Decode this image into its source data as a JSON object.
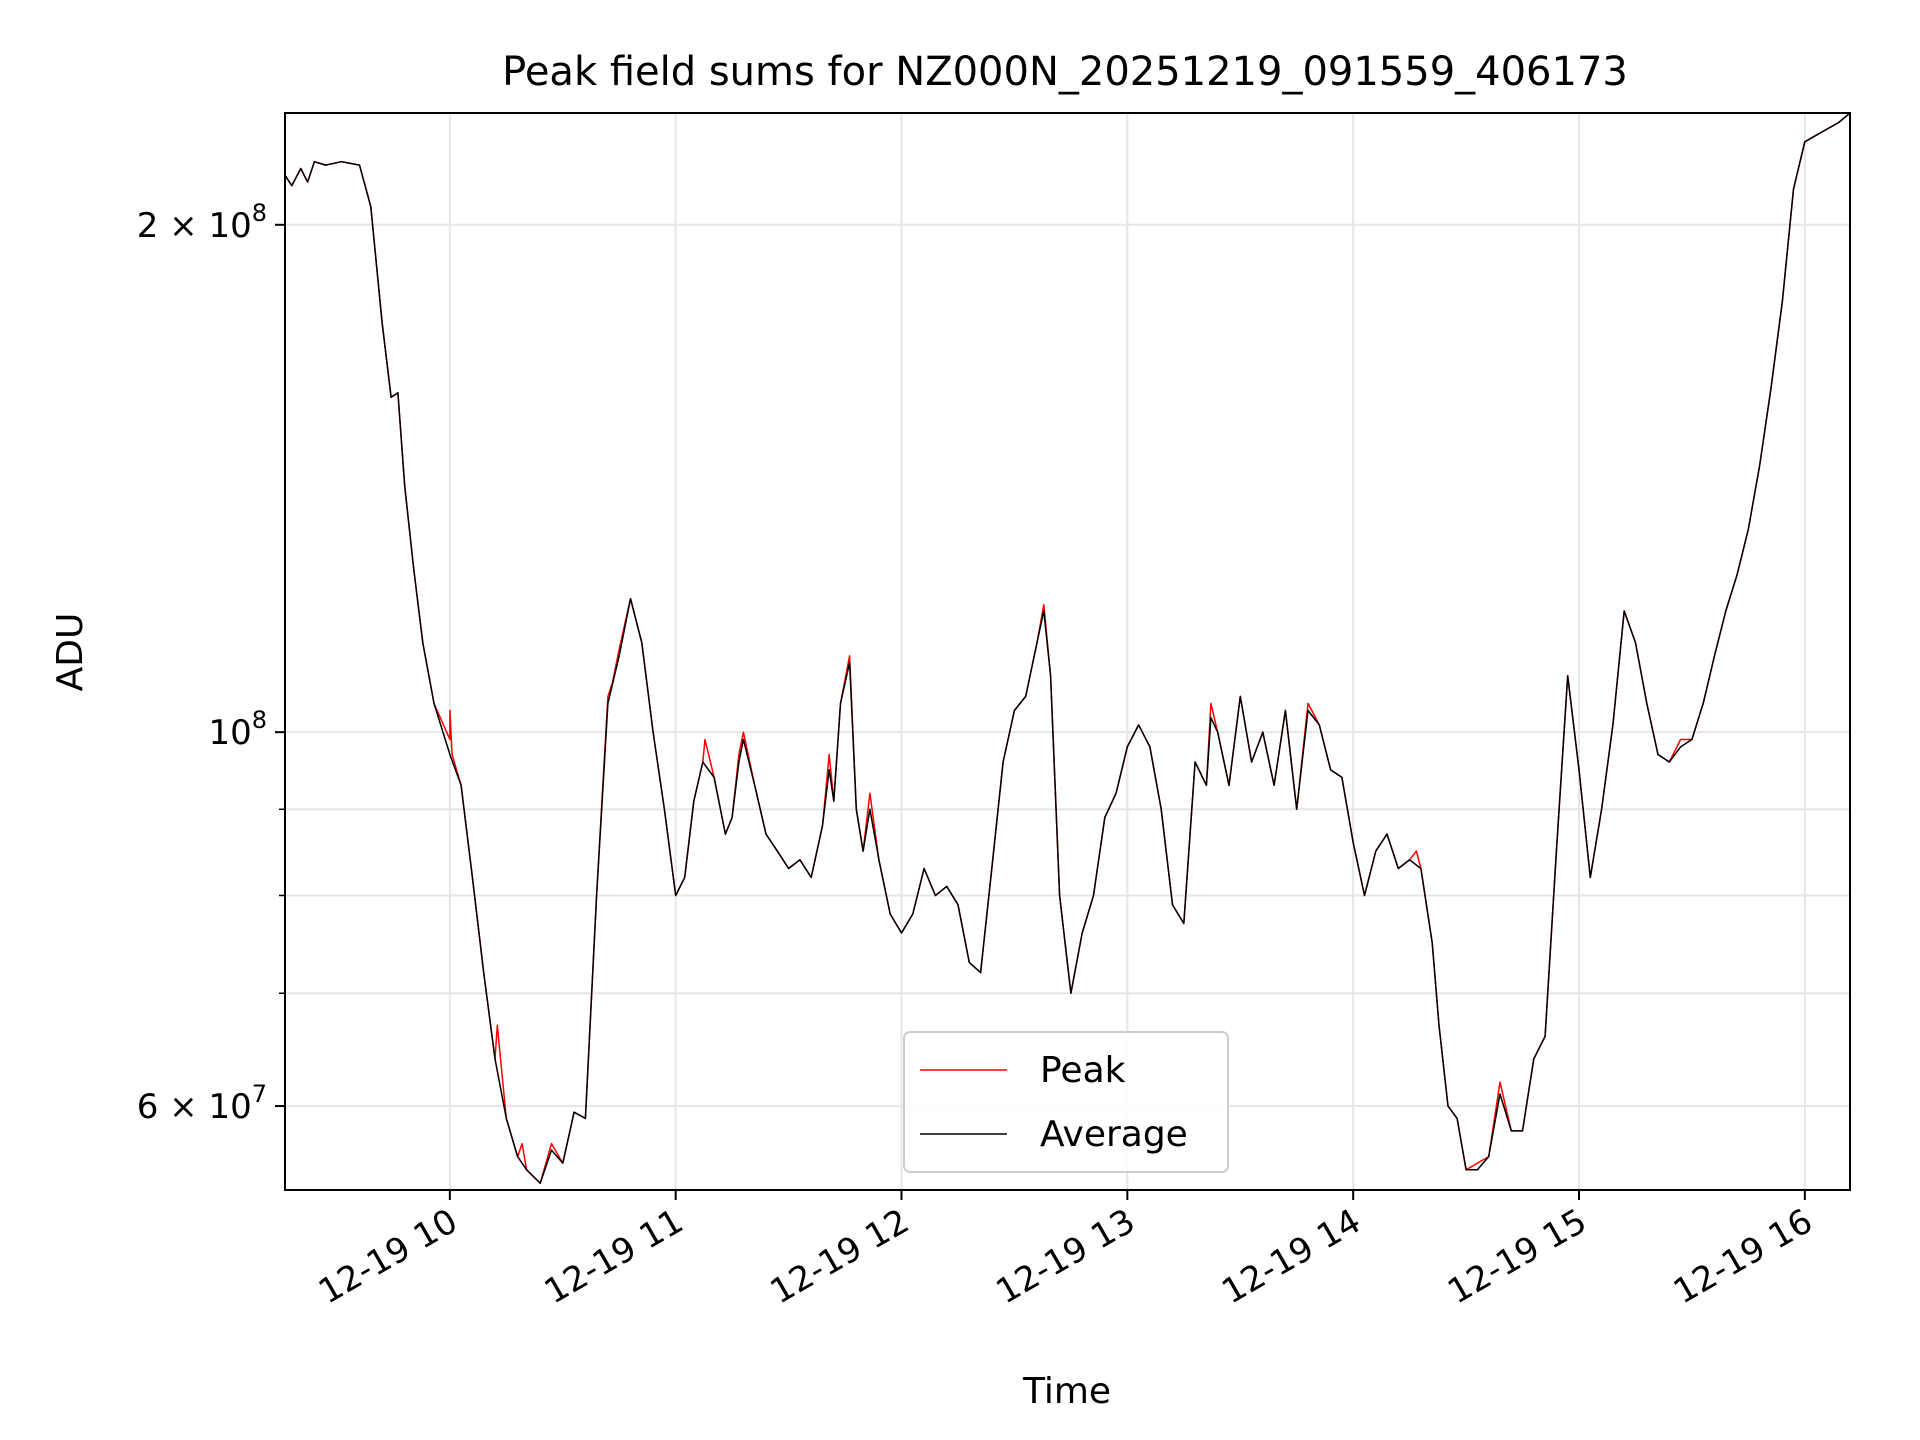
{
  "chart_data": {
    "type": "line",
    "title": "Peak field sums for NZ000N_20251219_091559_406173",
    "xlabel": "Time",
    "ylabel": "ADU",
    "y_scale": "log",
    "ylim": [
      53500000,
      233000000
    ],
    "xlim_hours": [
      9.27,
      16.2
    ],
    "grid": true,
    "legend_position": "lower center",
    "x_ticks": [
      {
        "value": 10,
        "label": "12-19 10"
      },
      {
        "value": 11,
        "label": "12-19 11"
      },
      {
        "value": 12,
        "label": "12-19 12"
      },
      {
        "value": 13,
        "label": "12-19 13"
      },
      {
        "value": 14,
        "label": "12-19 14"
      },
      {
        "value": 15,
        "label": "12-19 15"
      },
      {
        "value": 16,
        "label": "12-19 16"
      }
    ],
    "y_ticks": [
      {
        "value": 200000000,
        "base": "2 × 10",
        "exp": "8"
      },
      {
        "value": 100000000,
        "base": "10",
        "exp": "8"
      },
      {
        "value": 60000000,
        "base": "6 × 10",
        "exp": "7"
      }
    ],
    "y_minor_ticks": [
      70000000,
      80000000,
      90000000
    ],
    "x_unit": "hour of 2025-12-19",
    "series": [
      {
        "name": "Peak",
        "color": "#ff0000",
        "points": [
          [
            9.27,
            214
          ],
          [
            9.3,
            211
          ],
          [
            9.34,
            216
          ],
          [
            9.37,
            212
          ],
          [
            9.4,
            218
          ],
          [
            9.45,
            217
          ],
          [
            9.52,
            218
          ],
          [
            9.6,
            217
          ],
          [
            9.65,
            205
          ],
          [
            9.7,
            175
          ],
          [
            9.74,
            158
          ],
          [
            9.77,
            159
          ],
          [
            9.8,
            140
          ],
          [
            9.84,
            125
          ],
          [
            9.88,
            113
          ],
          [
            9.93,
            104
          ],
          [
            10.0,
            99
          ],
          [
            10.0,
            103
          ],
          [
            10.01,
            97
          ],
          [
            10.05,
            93
          ],
          [
            10.1,
            82
          ],
          [
            10.15,
            72
          ],
          [
            10.2,
            64
          ],
          [
            10.21,
            67
          ],
          [
            10.25,
            59
          ],
          [
            10.3,
            56
          ],
          [
            10.32,
            57
          ],
          [
            10.34,
            55
          ],
          [
            10.4,
            54
          ],
          [
            10.45,
            57
          ],
          [
            10.5,
            55.5
          ],
          [
            10.55,
            59.5
          ],
          [
            10.6,
            59
          ],
          [
            10.65,
            80
          ],
          [
            10.7,
            105
          ],
          [
            10.72,
            107
          ],
          [
            10.75,
            112
          ],
          [
            10.8,
            120
          ],
          [
            10.85,
            113
          ],
          [
            10.9,
            100
          ],
          [
            10.95,
            90
          ],
          [
            11.0,
            80
          ],
          [
            11.04,
            82
          ],
          [
            11.08,
            91
          ],
          [
            11.12,
            96
          ],
          [
            11.13,
            99
          ],
          [
            11.17,
            94
          ],
          [
            11.22,
            87
          ],
          [
            11.25,
            89
          ],
          [
            11.28,
            97
          ],
          [
            11.3,
            100
          ],
          [
            11.35,
            93
          ],
          [
            11.4,
            87
          ],
          [
            11.45,
            85
          ],
          [
            11.5,
            83
          ],
          [
            11.55,
            84
          ],
          [
            11.6,
            82
          ],
          [
            11.65,
            88
          ],
          [
            11.68,
            97
          ],
          [
            11.7,
            91
          ],
          [
            11.73,
            104
          ],
          [
            11.77,
            111
          ],
          [
            11.8,
            90
          ],
          [
            11.83,
            85
          ],
          [
            11.86,
            92
          ],
          [
            11.9,
            84
          ],
          [
            11.95,
            78
          ],
          [
            12.0,
            76
          ],
          [
            12.05,
            78
          ],
          [
            12.1,
            83
          ],
          [
            12.15,
            80
          ],
          [
            12.2,
            81
          ],
          [
            12.25,
            79
          ],
          [
            12.3,
            73
          ],
          [
            12.35,
            72
          ],
          [
            12.4,
            83
          ],
          [
            12.45,
            96
          ],
          [
            12.5,
            103
          ],
          [
            12.55,
            105
          ],
          [
            12.6,
            113
          ],
          [
            12.63,
            119
          ],
          [
            12.66,
            108
          ],
          [
            12.7,
            80
          ],
          [
            12.75,
            70
          ],
          [
            12.8,
            76
          ],
          [
            12.85,
            80
          ],
          [
            12.9,
            89
          ],
          [
            12.95,
            92
          ],
          [
            13.0,
            98
          ],
          [
            13.05,
            101
          ],
          [
            13.1,
            98
          ],
          [
            13.15,
            90
          ],
          [
            13.2,
            79
          ],
          [
            13.25,
            77
          ],
          [
            13.3,
            96
          ],
          [
            13.35,
            93
          ],
          [
            13.37,
            104
          ],
          [
            13.4,
            100
          ],
          [
            13.45,
            93
          ],
          [
            13.5,
            105
          ],
          [
            13.55,
            96
          ],
          [
            13.6,
            100
          ],
          [
            13.65,
            93
          ],
          [
            13.7,
            103
          ],
          [
            13.75,
            90
          ],
          [
            13.8,
            104
          ],
          [
            13.85,
            101
          ],
          [
            13.9,
            95
          ],
          [
            13.95,
            94
          ],
          [
            14.0,
            86
          ],
          [
            14.05,
            80
          ],
          [
            14.1,
            85
          ],
          [
            14.15,
            87
          ],
          [
            14.2,
            83
          ],
          [
            14.25,
            84
          ],
          [
            14.28,
            85
          ],
          [
            14.3,
            83
          ],
          [
            14.35,
            75
          ],
          [
            14.38,
            67
          ],
          [
            14.42,
            60
          ],
          [
            14.46,
            59
          ],
          [
            14.5,
            55
          ],
          [
            14.55,
            55.5
          ],
          [
            14.6,
            56
          ],
          [
            14.65,
            62
          ],
          [
            14.7,
            58
          ],
          [
            14.75,
            58
          ],
          [
            14.8,
            64
          ],
          [
            14.85,
            66
          ],
          [
            14.9,
            85
          ],
          [
            14.95,
            108
          ],
          [
            15.0,
            95
          ],
          [
            15.05,
            82
          ],
          [
            15.1,
            90
          ],
          [
            15.15,
            101
          ],
          [
            15.2,
            118
          ],
          [
            15.25,
            113
          ],
          [
            15.3,
            104
          ],
          [
            15.35,
            97
          ],
          [
            15.4,
            96
          ],
          [
            15.45,
            99
          ],
          [
            15.5,
            99
          ],
          [
            15.55,
            104
          ],
          [
            15.6,
            111
          ],
          [
            15.65,
            118
          ],
          [
            15.7,
            124
          ],
          [
            15.75,
            132
          ],
          [
            15.8,
            144
          ],
          [
            15.85,
            160
          ],
          [
            15.9,
            180
          ],
          [
            15.95,
            210
          ],
          [
            16.0,
            224
          ],
          [
            16.05,
            226
          ],
          [
            16.1,
            228
          ],
          [
            16.15,
            230
          ],
          [
            16.2,
            233
          ]
        ]
      },
      {
        "name": "Average",
        "color": "#000000",
        "points": [
          [
            9.27,
            214
          ],
          [
            9.3,
            211
          ],
          [
            9.34,
            216
          ],
          [
            9.37,
            212
          ],
          [
            9.4,
            218
          ],
          [
            9.45,
            217
          ],
          [
            9.52,
            218
          ],
          [
            9.6,
            217
          ],
          [
            9.65,
            205
          ],
          [
            9.7,
            175
          ],
          [
            9.74,
            158
          ],
          [
            9.77,
            159
          ],
          [
            9.8,
            140
          ],
          [
            9.84,
            125
          ],
          [
            9.88,
            113
          ],
          [
            9.93,
            104
          ],
          [
            10.0,
            97
          ],
          [
            10.05,
            93
          ],
          [
            10.1,
            82
          ],
          [
            10.15,
            72
          ],
          [
            10.2,
            64
          ],
          [
            10.25,
            59
          ],
          [
            10.3,
            56
          ],
          [
            10.34,
            55
          ],
          [
            10.4,
            54
          ],
          [
            10.45,
            56.5
          ],
          [
            10.5,
            55.5
          ],
          [
            10.55,
            59.5
          ],
          [
            10.6,
            59
          ],
          [
            10.65,
            80
          ],
          [
            10.7,
            104
          ],
          [
            10.75,
            111
          ],
          [
            10.8,
            120
          ],
          [
            10.85,
            113
          ],
          [
            10.9,
            100
          ],
          [
            10.95,
            90
          ],
          [
            11.0,
            80
          ],
          [
            11.04,
            82
          ],
          [
            11.08,
            91
          ],
          [
            11.12,
            96
          ],
          [
            11.17,
            94
          ],
          [
            11.22,
            87
          ],
          [
            11.25,
            89
          ],
          [
            11.28,
            96
          ],
          [
            11.3,
            99
          ],
          [
            11.35,
            93
          ],
          [
            11.4,
            87
          ],
          [
            11.45,
            85
          ],
          [
            11.5,
            83
          ],
          [
            11.55,
            84
          ],
          [
            11.6,
            82
          ],
          [
            11.65,
            88
          ],
          [
            11.68,
            95
          ],
          [
            11.7,
            91
          ],
          [
            11.73,
            104
          ],
          [
            11.77,
            110
          ],
          [
            11.8,
            90
          ],
          [
            11.83,
            85
          ],
          [
            11.86,
            90
          ],
          [
            11.9,
            84
          ],
          [
            11.95,
            78
          ],
          [
            12.0,
            76
          ],
          [
            12.05,
            78
          ],
          [
            12.1,
            83
          ],
          [
            12.15,
            80
          ],
          [
            12.2,
            81
          ],
          [
            12.25,
            79
          ],
          [
            12.3,
            73
          ],
          [
            12.35,
            72
          ],
          [
            12.4,
            83
          ],
          [
            12.45,
            96
          ],
          [
            12.5,
            103
          ],
          [
            12.55,
            105
          ],
          [
            12.6,
            113
          ],
          [
            12.63,
            118
          ],
          [
            12.66,
            108
          ],
          [
            12.7,
            80
          ],
          [
            12.75,
            70
          ],
          [
            12.8,
            76
          ],
          [
            12.85,
            80
          ],
          [
            12.9,
            89
          ],
          [
            12.95,
            92
          ],
          [
            13.0,
            98
          ],
          [
            13.05,
            101
          ],
          [
            13.1,
            98
          ],
          [
            13.15,
            90
          ],
          [
            13.2,
            79
          ],
          [
            13.25,
            77
          ],
          [
            13.3,
            96
          ],
          [
            13.35,
            93
          ],
          [
            13.37,
            102
          ],
          [
            13.4,
            100
          ],
          [
            13.45,
            93
          ],
          [
            13.5,
            105
          ],
          [
            13.55,
            96
          ],
          [
            13.6,
            100
          ],
          [
            13.65,
            93
          ],
          [
            13.7,
            103
          ],
          [
            13.75,
            90
          ],
          [
            13.8,
            103
          ],
          [
            13.85,
            101
          ],
          [
            13.9,
            95
          ],
          [
            13.95,
            94
          ],
          [
            14.0,
            86
          ],
          [
            14.05,
            80
          ],
          [
            14.1,
            85
          ],
          [
            14.15,
            87
          ],
          [
            14.2,
            83
          ],
          [
            14.25,
            84
          ],
          [
            14.3,
            83
          ],
          [
            14.35,
            75
          ],
          [
            14.38,
            67
          ],
          [
            14.42,
            60
          ],
          [
            14.46,
            59
          ],
          [
            14.5,
            55
          ],
          [
            14.55,
            55
          ],
          [
            14.6,
            56
          ],
          [
            14.65,
            61
          ],
          [
            14.7,
            58
          ],
          [
            14.75,
            58
          ],
          [
            14.8,
            64
          ],
          [
            14.85,
            66
          ],
          [
            14.9,
            85
          ],
          [
            14.95,
            108
          ],
          [
            15.0,
            95
          ],
          [
            15.05,
            82
          ],
          [
            15.1,
            90
          ],
          [
            15.15,
            101
          ],
          [
            15.2,
            118
          ],
          [
            15.25,
            113
          ],
          [
            15.3,
            104
          ],
          [
            15.35,
            97
          ],
          [
            15.4,
            96
          ],
          [
            15.45,
            98
          ],
          [
            15.5,
            99
          ],
          [
            15.55,
            104
          ],
          [
            15.6,
            111
          ],
          [
            15.65,
            118
          ],
          [
            15.7,
            124
          ],
          [
            15.75,
            132
          ],
          [
            15.8,
            144
          ],
          [
            15.85,
            160
          ],
          [
            15.9,
            180
          ],
          [
            15.95,
            210
          ],
          [
            16.0,
            224
          ],
          [
            16.05,
            226
          ],
          [
            16.1,
            228
          ],
          [
            16.15,
            230
          ],
          [
            16.2,
            233
          ]
        ]
      }
    ]
  }
}
